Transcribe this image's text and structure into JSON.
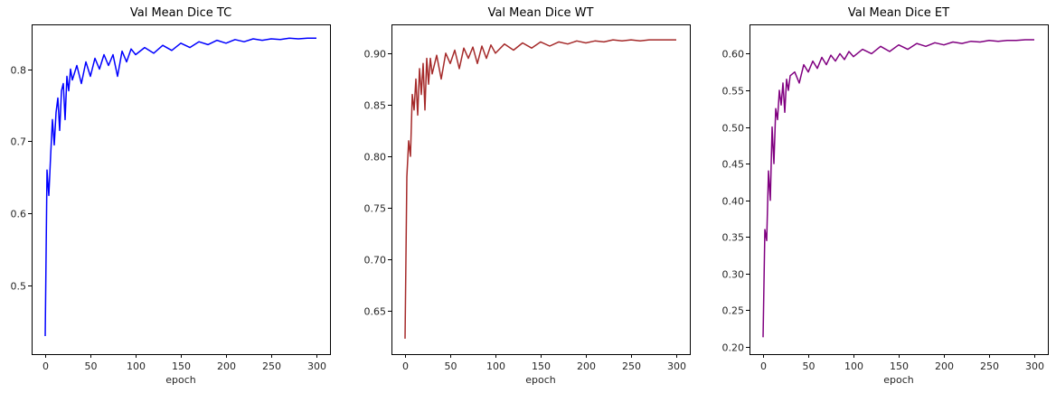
{
  "figure": {
    "background": "#ffffff"
  },
  "chart_data": [
    {
      "type": "line",
      "title": "Val Mean Dice TC",
      "xlabel": "epoch",
      "ylabel": "",
      "xlim": [
        -15,
        315
      ],
      "ylim": [
        0.405,
        0.862
      ],
      "xticks": [
        0,
        50,
        100,
        150,
        200,
        250,
        300
      ],
      "yticks": [
        0.5,
        0.6,
        0.7,
        0.8
      ],
      "ytick_labels": [
        "0.5",
        "0.6",
        "0.7",
        "0.8"
      ],
      "grid": false,
      "series": [
        {
          "name": "TC",
          "color": "#0000ff",
          "x": [
            0,
            2,
            4,
            6,
            8,
            10,
            12,
            14,
            16,
            18,
            20,
            22,
            24,
            26,
            28,
            30,
            35,
            40,
            45,
            50,
            55,
            60,
            65,
            70,
            75,
            80,
            85,
            90,
            95,
            100,
            110,
            120,
            130,
            140,
            150,
            160,
            170,
            180,
            190,
            200,
            210,
            220,
            230,
            240,
            250,
            260,
            270,
            280,
            290,
            300
          ],
          "values": [
            0.43,
            0.66,
            0.625,
            0.68,
            0.73,
            0.695,
            0.74,
            0.76,
            0.715,
            0.77,
            0.78,
            0.73,
            0.79,
            0.77,
            0.8,
            0.785,
            0.805,
            0.78,
            0.81,
            0.79,
            0.815,
            0.8,
            0.82,
            0.805,
            0.82,
            0.79,
            0.825,
            0.81,
            0.828,
            0.82,
            0.83,
            0.822,
            0.833,
            0.826,
            0.836,
            0.83,
            0.838,
            0.834,
            0.84,
            0.836,
            0.841,
            0.838,
            0.842,
            0.84,
            0.842,
            0.841,
            0.843,
            0.842,
            0.843,
            0.843
          ]
        }
      ]
    },
    {
      "type": "line",
      "title": "Val Mean Dice WT",
      "xlabel": "epoch",
      "ylabel": "",
      "xlim": [
        -15,
        315
      ],
      "ylim": [
        0.608,
        0.928
      ],
      "xticks": [
        0,
        50,
        100,
        150,
        200,
        250,
        300
      ],
      "yticks": [
        0.65,
        0.7,
        0.75,
        0.8,
        0.85,
        0.9
      ],
      "ytick_labels": [
        "0.65",
        "0.70",
        "0.75",
        "0.80",
        "0.85",
        "0.90"
      ],
      "grid": false,
      "series": [
        {
          "name": "WT",
          "color": "#a52a2a",
          "x": [
            0,
            2,
            4,
            6,
            8,
            10,
            12,
            14,
            16,
            18,
            20,
            22,
            24,
            26,
            28,
            30,
            35,
            40,
            45,
            50,
            55,
            60,
            65,
            70,
            75,
            80,
            85,
            90,
            95,
            100,
            110,
            120,
            130,
            140,
            150,
            160,
            170,
            180,
            190,
            200,
            210,
            220,
            230,
            240,
            250,
            260,
            270,
            280,
            290,
            300
          ],
          "values": [
            0.623,
            0.78,
            0.815,
            0.8,
            0.86,
            0.845,
            0.875,
            0.84,
            0.885,
            0.86,
            0.89,
            0.845,
            0.895,
            0.87,
            0.895,
            0.88,
            0.898,
            0.875,
            0.9,
            0.89,
            0.903,
            0.885,
            0.905,
            0.895,
            0.906,
            0.89,
            0.907,
            0.895,
            0.908,
            0.9,
            0.909,
            0.903,
            0.91,
            0.905,
            0.911,
            0.907,
            0.911,
            0.909,
            0.912,
            0.91,
            0.912,
            0.911,
            0.913,
            0.912,
            0.913,
            0.912,
            0.913,
            0.913,
            0.913,
            0.913
          ]
        }
      ]
    },
    {
      "type": "line",
      "title": "Val Mean Dice ET",
      "xlabel": "epoch",
      "ylabel": "",
      "xlim": [
        -15,
        315
      ],
      "ylim": [
        0.19,
        0.64
      ],
      "xticks": [
        0,
        50,
        100,
        150,
        200,
        250,
        300
      ],
      "yticks": [
        0.2,
        0.25,
        0.3,
        0.35,
        0.4,
        0.45,
        0.5,
        0.55,
        0.6
      ],
      "ytick_labels": [
        "0.20",
        "0.25",
        "0.30",
        "0.35",
        "0.40",
        "0.45",
        "0.50",
        "0.55",
        "0.60"
      ],
      "grid": false,
      "series": [
        {
          "name": "ET",
          "color": "#800080",
          "x": [
            0,
            2,
            4,
            6,
            8,
            10,
            12,
            14,
            16,
            18,
            20,
            22,
            24,
            26,
            28,
            30,
            35,
            40,
            45,
            50,
            55,
            60,
            65,
            70,
            75,
            80,
            85,
            90,
            95,
            100,
            110,
            120,
            130,
            140,
            150,
            160,
            170,
            180,
            190,
            200,
            210,
            220,
            230,
            240,
            250,
            260,
            270,
            280,
            290,
            300
          ],
          "values": [
            0.213,
            0.36,
            0.345,
            0.44,
            0.4,
            0.5,
            0.45,
            0.525,
            0.51,
            0.55,
            0.53,
            0.56,
            0.52,
            0.565,
            0.55,
            0.57,
            0.575,
            0.56,
            0.585,
            0.575,
            0.59,
            0.58,
            0.595,
            0.585,
            0.598,
            0.59,
            0.6,
            0.592,
            0.603,
            0.596,
            0.606,
            0.6,
            0.61,
            0.603,
            0.612,
            0.606,
            0.614,
            0.61,
            0.615,
            0.612,
            0.616,
            0.614,
            0.617,
            0.616,
            0.618,
            0.617,
            0.618,
            0.618,
            0.619,
            0.619
          ]
        }
      ]
    }
  ]
}
